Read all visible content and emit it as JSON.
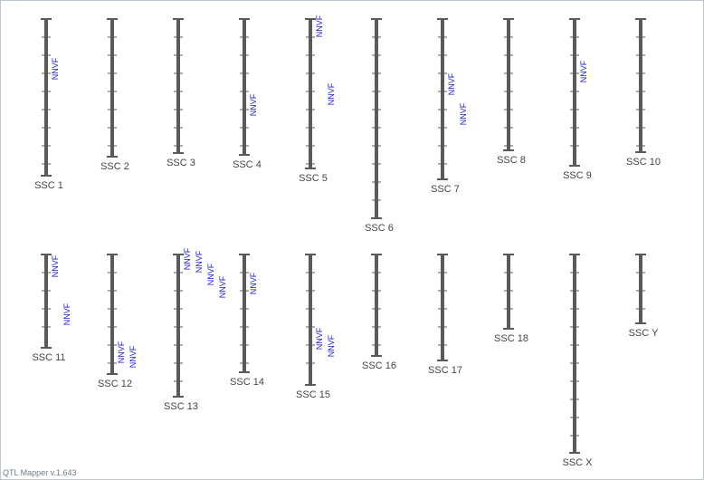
{
  "chromosomes": [
    {
      "label": "SSC 1",
      "qtls": [
        "NNVF"
      ]
    },
    {
      "label": "SSC 2",
      "qtls": []
    },
    {
      "label": "SSC 3",
      "qtls": []
    },
    {
      "label": "SSC 4",
      "qtls": [
        "NNVF"
      ]
    },
    {
      "label": "SSC 5",
      "qtls": [
        "NNVF",
        "NNVF"
      ]
    },
    {
      "label": "SSC 6",
      "qtls": []
    },
    {
      "label": "SSC 7",
      "qtls": [
        "NNVF",
        "NNVF"
      ]
    },
    {
      "label": "SSC 8",
      "qtls": []
    },
    {
      "label": "SSC 9",
      "qtls": [
        "NNVF"
      ]
    },
    {
      "label": "SSC 10",
      "qtls": []
    },
    {
      "label": "SSC 11",
      "qtls": [
        "NNVF",
        "NNVF"
      ]
    },
    {
      "label": "SSC 12",
      "qtls": [
        "NNVF",
        "NNVF"
      ]
    },
    {
      "label": "SSC 13",
      "qtls": [
        "NNVF",
        "NNVF",
        "NNVF",
        "NNVF"
      ]
    },
    {
      "label": "SSC 14",
      "qtls": [
        "NNVF"
      ]
    },
    {
      "label": "SSC 15",
      "qtls": [
        "NNVF",
        "NNVF"
      ]
    },
    {
      "label": "SSC 16",
      "qtls": []
    },
    {
      "label": "SSC 17",
      "qtls": []
    },
    {
      "label": "SSC 18",
      "qtls": []
    },
    {
      "label": "SSC X",
      "qtls": []
    },
    {
      "label": "SSC Y",
      "qtls": []
    }
  ],
  "footer": "QTL Mapper v.1.643"
}
